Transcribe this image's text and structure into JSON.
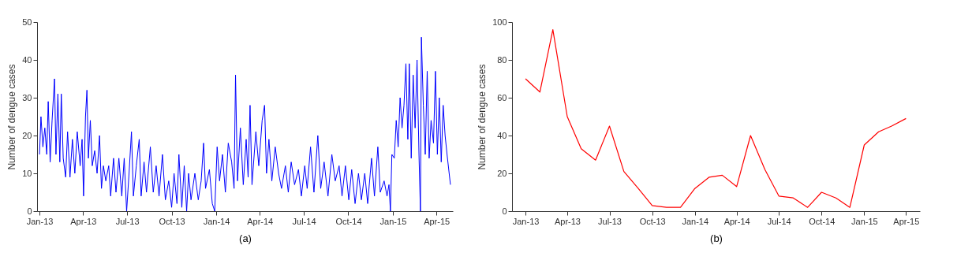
{
  "chart_data": [
    {
      "type": "line",
      "xlabel": "(a)",
      "ylabel": "Number of dengue cases",
      "xlim": [
        "2012-12-27",
        "2015-05-05"
      ],
      "ylim": [
        0,
        50
      ],
      "yticks": [
        0,
        10,
        20,
        30,
        40,
        50
      ],
      "xticks": [
        {
          "value": "2013-01-01",
          "label": "Jan-13"
        },
        {
          "value": "2013-04-01",
          "label": "Apr-13"
        },
        {
          "value": "2013-07-01",
          "label": "Jul-13"
        },
        {
          "value": "2013-10-01",
          "label": "Oct-13"
        },
        {
          "value": "2014-01-01",
          "label": "Jan-14"
        },
        {
          "value": "2014-04-01",
          "label": "Apr-14"
        },
        {
          "value": "2014-07-01",
          "label": "Jul-14"
        },
        {
          "value": "2014-10-01",
          "label": "Oct-14"
        },
        {
          "value": "2015-01-01",
          "label": "Jan-15"
        },
        {
          "value": "2015-04-01",
          "label": "Apr-15"
        }
      ],
      "x": [
        "2013-01-01",
        "2013-01-04",
        "2013-01-08",
        "2013-01-12",
        "2013-01-16",
        "2013-01-19",
        "2013-01-23",
        "2013-01-27",
        "2013-02-01",
        "2013-02-04",
        "2013-02-08",
        "2013-02-12",
        "2013-02-15",
        "2013-02-19",
        "2013-02-24",
        "2013-02-28",
        "2013-03-05",
        "2013-03-10",
        "2013-03-15",
        "2013-03-20",
        "2013-03-26",
        "2013-03-30",
        "2013-04-02",
        "2013-04-06",
        "2013-04-09",
        "2013-04-12",
        "2013-04-16",
        "2013-04-20",
        "2013-04-25",
        "2013-04-30",
        "2013-05-05",
        "2013-05-09",
        "2013-05-13",
        "2013-05-18",
        "2013-05-24",
        "2013-05-28",
        "2013-06-03",
        "2013-06-08",
        "2013-06-14",
        "2013-06-20",
        "2013-06-25",
        "2013-06-30",
        "2013-07-05",
        "2013-07-10",
        "2013-07-14",
        "2013-07-20",
        "2013-07-26",
        "2013-07-30",
        "2013-08-05",
        "2013-08-10",
        "2013-08-18",
        "2013-08-24",
        "2013-08-30",
        "2013-09-05",
        "2013-09-12",
        "2013-09-18",
        "2013-09-25",
        "2013-10-01",
        "2013-10-06",
        "2013-10-12",
        "2013-10-16",
        "2013-10-22",
        "2013-10-27",
        "2013-11-01",
        "2013-11-05",
        "2013-11-10",
        "2013-11-18",
        "2013-11-25",
        "2013-12-01",
        "2013-12-06",
        "2013-12-10",
        "2013-12-18",
        "2013-12-24",
        "2013-12-29",
        "2014-01-03",
        "2014-01-08",
        "2014-01-14",
        "2014-01-20",
        "2014-01-26",
        "2014-02-02",
        "2014-02-07",
        "2014-02-10",
        "2014-02-14",
        "2014-02-20",
        "2014-02-26",
        "2014-03-04",
        "2014-03-08",
        "2014-03-12",
        "2014-03-16",
        "2014-03-24",
        "2014-03-30",
        "2014-04-06",
        "2014-04-11",
        "2014-04-15",
        "2014-04-20",
        "2014-04-26",
        "2014-05-03",
        "2014-05-10",
        "2014-05-16",
        "2014-05-24",
        "2014-05-30",
        "2014-06-05",
        "2014-06-12",
        "2014-06-20",
        "2014-06-26",
        "2014-07-03",
        "2014-07-08",
        "2014-07-15",
        "2014-07-22",
        "2014-07-30",
        "2014-08-05",
        "2014-08-12",
        "2014-08-20",
        "2014-08-28",
        "2014-09-04",
        "2014-09-12",
        "2014-09-18",
        "2014-09-25",
        "2014-10-02",
        "2014-10-08",
        "2014-10-15",
        "2014-10-22",
        "2014-10-28",
        "2014-11-04",
        "2014-11-10",
        "2014-11-18",
        "2014-11-24",
        "2014-12-01",
        "2014-12-06",
        "2014-12-14",
        "2014-12-20",
        "2014-12-24",
        "2014-12-27",
        "2014-12-30",
        "2015-01-04",
        "2015-01-08",
        "2015-01-12",
        "2015-01-16",
        "2015-01-20",
        "2015-01-24",
        "2015-01-28",
        "2015-02-01",
        "2015-02-04",
        "2015-02-08",
        "2015-02-12",
        "2015-02-16",
        "2015-02-20",
        "2015-02-24",
        "2015-02-27",
        "2015-03-01",
        "2015-03-05",
        "2015-03-09",
        "2015-03-13",
        "2015-03-17",
        "2015-03-21",
        "2015-03-26",
        "2015-03-30",
        "2015-04-03",
        "2015-04-07",
        "2015-04-11",
        "2015-04-15",
        "2015-04-19",
        "2015-04-23",
        "2015-04-30"
      ],
      "series": [
        {
          "color": "#0000ff",
          "values": [
            15,
            25,
            17,
            22,
            15,
            29,
            13,
            24,
            35,
            15,
            31,
            13,
            31,
            14,
            9,
            21,
            9,
            19,
            10,
            21,
            12,
            19,
            4,
            25,
            32,
            14,
            24,
            12,
            16,
            10,
            20,
            6,
            12,
            8,
            12,
            4,
            14,
            5,
            14,
            4,
            14,
            0,
            10,
            21,
            4,
            12,
            19,
            4,
            13,
            5,
            17,
            5,
            12,
            4,
            15,
            3,
            8,
            1,
            10,
            2,
            15,
            1,
            12,
            0,
            10,
            3,
            10,
            3,
            8,
            18,
            6,
            11,
            2,
            0,
            17,
            8,
            15,
            5,
            18,
            13,
            6,
            36,
            8,
            22,
            7,
            19,
            9,
            28,
            7,
            21,
            12,
            24,
            28,
            10,
            19,
            8,
            17,
            10,
            6,
            12,
            5,
            13,
            7,
            11,
            4,
            12,
            6,
            17,
            5,
            20,
            6,
            13,
            4,
            15,
            8,
            12,
            4,
            12,
            3,
            11,
            2,
            10,
            3,
            10,
            2,
            14,
            4,
            17,
            5,
            8,
            4,
            7,
            0,
            15,
            14,
            24,
            17,
            30,
            22,
            28,
            39,
            19,
            39,
            14,
            36,
            22,
            40,
            15,
            0,
            46,
            28,
            15,
            37,
            14,
            24,
            18,
            37,
            15,
            30,
            13,
            28,
            20,
            15,
            7
          ]
        }
      ]
    },
    {
      "type": "line",
      "xlabel": "(b)",
      "ylabel": "Number of dengue cases",
      "xlim": [
        "2012-12-03",
        "2015-05-01"
      ],
      "ylim": [
        0,
        100
      ],
      "yticks": [
        0,
        20,
        40,
        60,
        80,
        100
      ],
      "xticks": [
        {
          "value": "2013-01-01",
          "label": "Jan-13"
        },
        {
          "value": "2013-04-01",
          "label": "Apr-13"
        },
        {
          "value": "2013-07-01",
          "label": "Jul-13"
        },
        {
          "value": "2013-10-01",
          "label": "Oct-13"
        },
        {
          "value": "2014-01-01",
          "label": "Jan-14"
        },
        {
          "value": "2014-04-01",
          "label": "Apr-14"
        },
        {
          "value": "2014-07-01",
          "label": "Jul-14"
        },
        {
          "value": "2014-10-01",
          "label": "Oct-14"
        },
        {
          "value": "2015-01-01",
          "label": "Jan-15"
        },
        {
          "value": "2015-04-01",
          "label": "Apr-15"
        }
      ],
      "x": [
        "2013-01-01",
        "2013-02-01",
        "2013-03-01",
        "2013-04-01",
        "2013-05-01",
        "2013-06-01",
        "2013-07-01",
        "2013-08-01",
        "2013-09-01",
        "2013-10-01",
        "2013-11-01",
        "2013-12-01",
        "2014-01-01",
        "2014-02-01",
        "2014-03-01",
        "2014-04-01",
        "2014-05-01",
        "2014-06-01",
        "2014-07-01",
        "2014-08-01",
        "2014-09-01",
        "2014-10-01",
        "2014-11-01",
        "2014-12-01",
        "2015-01-01",
        "2015-02-01",
        "2015-03-01",
        "2015-04-01"
      ],
      "series": [
        {
          "color": "#ff0000",
          "values": [
            70,
            63,
            96,
            50,
            33,
            27,
            45,
            21,
            12,
            3,
            2,
            2,
            12,
            18,
            19,
            13,
            40,
            22,
            8,
            7,
            2,
            10,
            7,
            2,
            35,
            42,
            45,
            49
          ]
        }
      ]
    }
  ]
}
